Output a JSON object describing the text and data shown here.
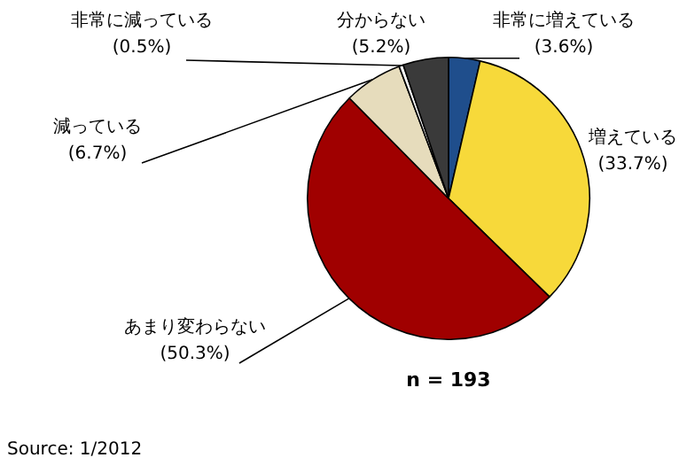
{
  "chart_data": {
    "type": "pie",
    "categories": [
      "非常に増えている",
      "増えている",
      "あまり変わらない",
      "減っている",
      "非常に減っている",
      "分からない"
    ],
    "values": [
      3.6,
      33.7,
      50.3,
      6.7,
      0.5,
      5.2
    ],
    "value_labels": [
      "(3.6%)",
      "(33.7%)",
      "(50.3%)",
      "(6.7%)",
      "(0.5%)",
      "(5.2%)"
    ],
    "colors": [
      "#1f4e8c",
      "#f7d93a",
      "#a00000",
      "#e6dcbc",
      "#f2f2f2",
      "#3a3a3a"
    ],
    "legend": false,
    "annotations": [
      "n = 193",
      "Source: 1/2012"
    ]
  }
}
